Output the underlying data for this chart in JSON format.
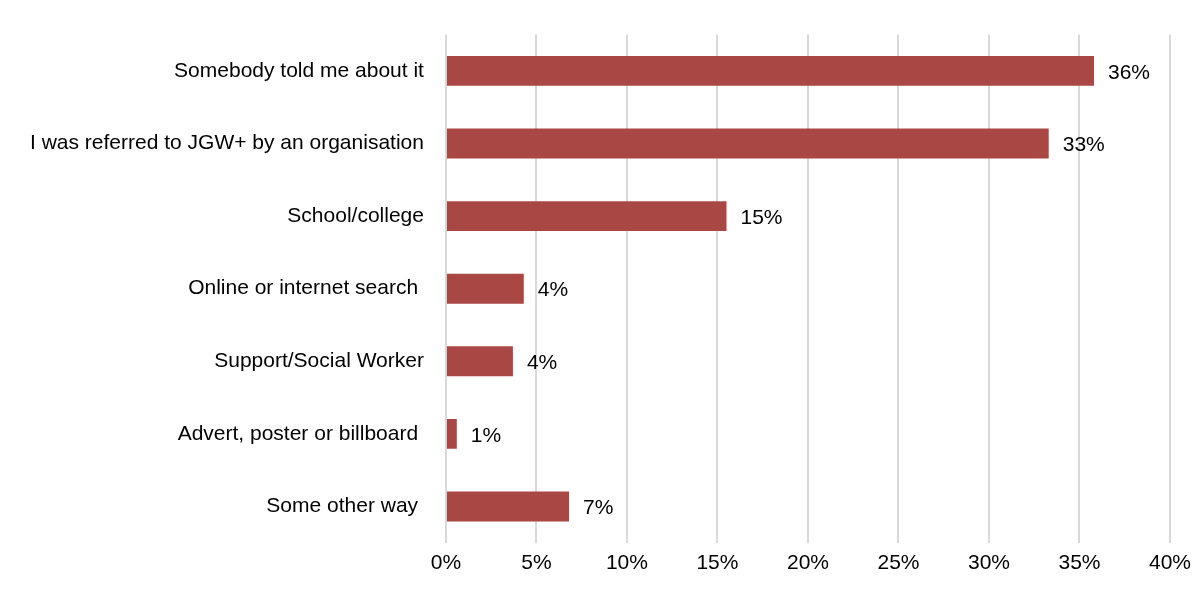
{
  "chart_data": {
    "type": "bar",
    "orientation": "horizontal",
    "categories": [
      "Somebody told me about it",
      "I was referred to JGW+ by an organisation",
      "School/college",
      "Online or internet search ",
      "Support/Social Worker",
      "Advert, poster or billboard ",
      "Some other way "
    ],
    "values": [
      35.8,
      33.3,
      15.5,
      4.3,
      3.7,
      0.6,
      6.8
    ],
    "value_labels": [
      "36%",
      "33%",
      "15%",
      "4%",
      "4%",
      "1%",
      "7%"
    ],
    "color": "#a94745",
    "xlim": [
      0,
      40
    ],
    "xticks": [
      {
        "value": 0,
        "label": "0%"
      },
      {
        "value": 5,
        "label": "5%"
      },
      {
        "value": 10,
        "label": "10%"
      },
      {
        "value": 15,
        "label": "15%"
      },
      {
        "value": 20,
        "label": "20%"
      },
      {
        "value": 25,
        "label": "25%"
      },
      {
        "value": 30,
        "label": "30%"
      },
      {
        "value": 35,
        "label": "35%"
      },
      {
        "value": 40,
        "label": "40%"
      }
    ],
    "grid": "x"
  }
}
